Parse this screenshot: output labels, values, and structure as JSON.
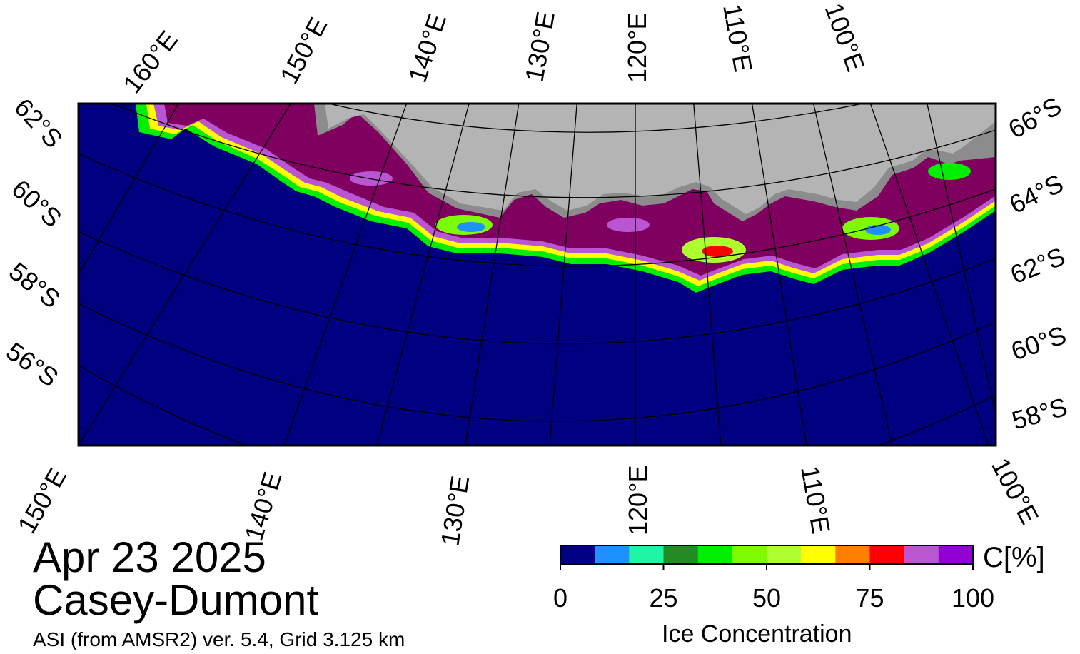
{
  "header": {
    "date": "Apr 23 2025",
    "region": "Casey-Dumont",
    "source": "ASI (from AMSR2) ver. 5.4,  Grid 3.125 km"
  },
  "top_longitude_labels": [
    "160°E",
    "150°E",
    "140°E",
    "130°E",
    "120°E",
    "110°E",
    "100°E"
  ],
  "bottom_longitude_labels": [
    "150°E",
    "140°E",
    "130°E",
    "120°E",
    "110°E",
    "100°E"
  ],
  "left_latitude_labels": [
    "62°S",
    "60°S",
    "58°S",
    "56°S"
  ],
  "right_latitude_labels": [
    "66°S",
    "64°S",
    "62°S",
    "60°S",
    "58°S"
  ],
  "colorbar": {
    "title": "Ice Concentration",
    "unit": "C[%]",
    "min": 0,
    "max": 100,
    "tick_labels": [
      "0",
      "25",
      "50",
      "75",
      "100"
    ],
    "tick_values": [
      0,
      25,
      50,
      75,
      100
    ],
    "colors": [
      "#000080",
      "#1e90ff",
      "#1ff5a4",
      "#228b22",
      "#00ee00",
      "#7cfc00",
      "#adff2f",
      "#ffff00",
      "#ff8000",
      "#ff0000",
      "#ba55d3",
      "#9400d3"
    ]
  },
  "map_colors": {
    "ocean": "#000080",
    "land": "#b4b4b4",
    "ice_shelf": "#8c8c8c",
    "pack_ice": "#800060",
    "border": "#000000"
  }
}
